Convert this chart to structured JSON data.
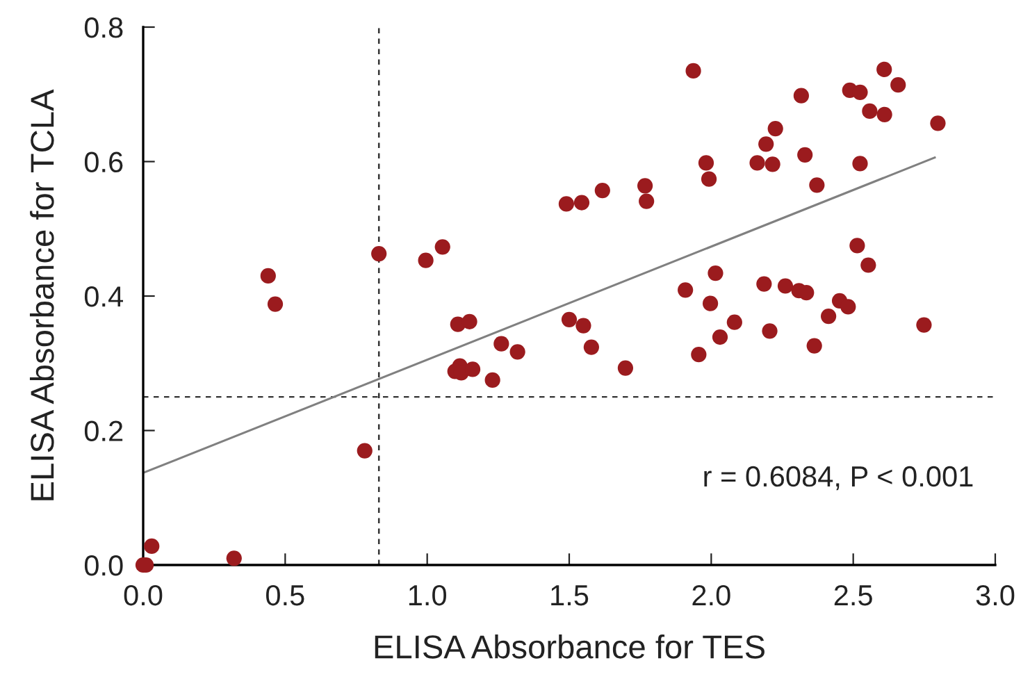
{
  "chart_data": {
    "type": "scatter",
    "xlabel": "ELISA Absorbance for TES",
    "ylabel": "ELISA Absorbance for TCLA",
    "xlim": [
      0,
      3
    ],
    "ylim": [
      0,
      0.8
    ],
    "xticks": [
      {
        "value": 0,
        "label": "0.0"
      },
      0.5,
      {
        "value": 1,
        "label": "1.0"
      },
      1.5,
      {
        "value": 2,
        "label": "2.0"
      },
      2.5,
      {
        "value": 3,
        "label": "3.0"
      }
    ],
    "yticks": [
      {
        "value": 0,
        "label": "0.0"
      },
      0.2,
      0.4,
      0.6,
      0.8
    ],
    "grid": false,
    "legend": false,
    "series": [
      {
        "marker": "circle",
        "color": "#9b1b1e",
        "x": [
          0.0,
          0.01,
          0.03,
          0.32,
          0.44,
          0.465,
          0.78,
          0.83,
          0.995,
          1.054,
          1.108,
          1.149,
          1.261,
          1.318,
          1.115,
          1.098,
          1.12,
          1.16,
          1.23,
          1.49,
          1.544,
          1.5,
          1.55,
          1.617,
          1.767,
          1.772,
          1.937,
          1.982,
          1.992,
          2.162,
          2.193,
          2.226,
          2.216,
          2.317,
          2.33,
          2.372,
          2.488,
          2.524,
          2.609,
          2.658,
          2.558,
          2.61,
          2.798,
          2.524,
          2.514,
          2.553,
          1.909,
          2.015,
          1.997,
          2.186,
          2.261,
          2.309,
          2.335,
          2.452,
          2.482,
          2.413,
          2.082,
          2.206,
          2.031,
          2.749,
          2.363,
          1.578,
          1.956,
          1.698
        ],
        "values": [
          0.0,
          0.0,
          0.028,
          0.01,
          0.43,
          0.388,
          0.17,
          0.463,
          0.453,
          0.473,
          0.358,
          0.362,
          0.329,
          0.317,
          0.296,
          0.288,
          0.286,
          0.291,
          0.275,
          0.537,
          0.539,
          0.365,
          0.356,
          0.557,
          0.564,
          0.541,
          0.735,
          0.598,
          0.574,
          0.598,
          0.626,
          0.649,
          0.596,
          0.698,
          0.61,
          0.565,
          0.706,
          0.703,
          0.737,
          0.714,
          0.675,
          0.67,
          0.657,
          0.597,
          0.475,
          0.446,
          0.409,
          0.434,
          0.389,
          0.418,
          0.415,
          0.408,
          0.405,
          0.393,
          0.384,
          0.37,
          0.361,
          0.348,
          0.339,
          0.357,
          0.326,
          0.324,
          0.313,
          0.293
        ]
      },
      {
        "type": "line",
        "color": "#808080",
        "x": [
          0,
          2.787
        ],
        "values": [
          0.137,
          0.606
        ]
      }
    ],
    "ref_lines": [
      {
        "axis": "x",
        "value": 0.83,
        "color": "#333333",
        "line_style": "dashed"
      },
      {
        "axis": "y",
        "value": 0.25,
        "color": "#333333",
        "line_style": "dashed"
      }
    ],
    "annotations": [
      "r = 0.6084, P < 0.001"
    ]
  }
}
